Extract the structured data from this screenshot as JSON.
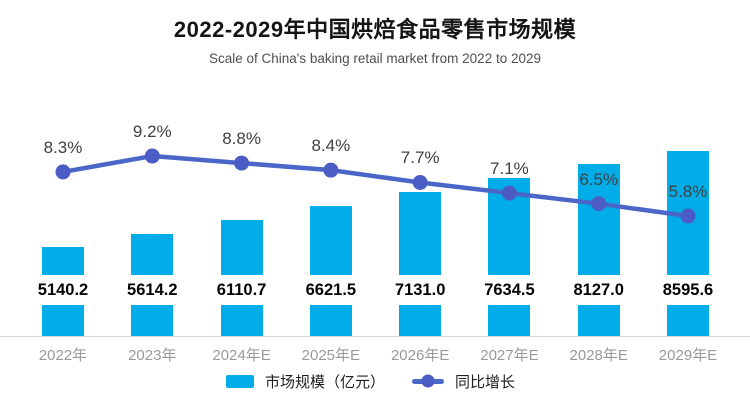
{
  "header": {
    "title": "2022-2029年中国烘焙食品零售市场规模",
    "subtitle": "Scale of China's baking retail market from 2022 to 2029"
  },
  "chart_data": {
    "type": "combo-bar-line",
    "categories": [
      "2022年",
      "2023年",
      "2024年E",
      "2025年E",
      "2026年E",
      "2027年E",
      "2028年E",
      "2029年E"
    ],
    "series": [
      {
        "name": "市场规模（亿元）",
        "type": "bar",
        "unit": "亿元",
        "values": [
          5140.2,
          5614.2,
          6110.7,
          6621.5,
          7131.0,
          7634.5,
          8127.0,
          8595.6
        ],
        "value_labels": [
          "5140.2",
          "5614.2",
          "6110.7",
          "6621.5",
          "7131.0",
          "7634.5",
          "8127.0",
          "8595.6"
        ]
      },
      {
        "name": "同比增长",
        "type": "line",
        "unit": "%",
        "values": [
          8.3,
          9.2,
          8.8,
          8.4,
          7.7,
          7.1,
          6.5,
          5.8
        ],
        "value_labels": [
          "8.3%",
          "9.2%",
          "8.8%",
          "8.4%",
          "7.7%",
          "7.1%",
          "6.5%",
          "5.8%"
        ]
      }
    ],
    "title": "2022-2029年中国烘焙食品零售市场规模",
    "subtitle": "Scale of China's baking retail market from 2022 to 2029",
    "xlabel": "",
    "ylabel": "",
    "grid": false,
    "legend_position": "bottom"
  },
  "legend": {
    "items": [
      {
        "label": "市场规模（亿元）",
        "marker": "bar-swatch"
      },
      {
        "label": "同比增长",
        "marker": "line-dot"
      }
    ]
  },
  "colors": {
    "bar": "#00ADE8",
    "line": "#4A66C8",
    "marker": "#4C5CC5",
    "bar_value_label": "#050505",
    "pct_label": "#404040",
    "tick_label": "#9A9A9A",
    "axis_line": "#D6D6D6",
    "title": "#141414",
    "subtitle": "#4F4F4F"
  }
}
